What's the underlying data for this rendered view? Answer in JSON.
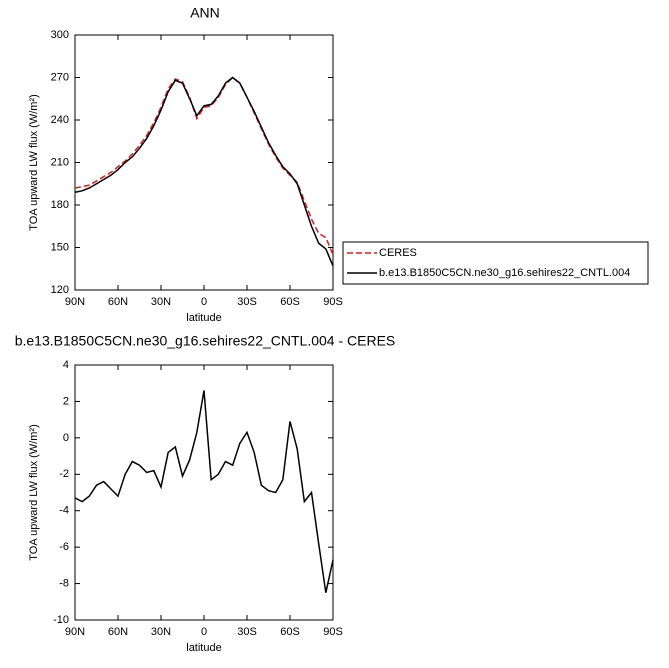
{
  "chart_data": [
    {
      "type": "line",
      "title": "ANN",
      "xlabel": "latitude",
      "ylabel": "TOA upward LW flux (W/m²)",
      "x": [
        90,
        85,
        80,
        75,
        70,
        65,
        60,
        55,
        50,
        45,
        40,
        35,
        30,
        25,
        20,
        15,
        10,
        5,
        0,
        -5,
        -10,
        -15,
        -20,
        -25,
        -30,
        -35,
        -40,
        -45,
        -50,
        -55,
        -60,
        -65,
        -70,
        -75,
        -80,
        -85,
        -90
      ],
      "series": [
        {
          "name": "CERES",
          "color": "#e41a1c",
          "line_style": "dashed",
          "values": [
            192,
            193,
            194,
            197,
            200,
            203,
            207,
            211,
            216,
            222,
            229,
            238,
            249,
            262,
            269,
            267,
            256,
            241,
            249,
            250,
            256,
            265,
            270,
            266,
            256,
            245,
            234,
            223,
            214,
            206,
            201,
            196,
            183,
            170,
            160,
            157,
            145
          ]
        },
        {
          "name": "b.e13.B1850C5CN.ne30_g16.sehires22_CNTL.004",
          "color": "#000000",
          "line_style": "solid",
          "values": [
            189,
            190,
            192,
            195,
            198,
            201,
            205,
            210,
            214,
            220,
            227,
            236,
            247,
            260,
            268,
            266,
            255,
            243,
            250,
            251,
            257,
            266,
            270,
            266,
            256,
            246,
            235,
            224,
            215,
            207,
            202,
            195,
            180,
            165,
            153,
            149,
            137
          ]
        }
      ],
      "xlim": [
        90,
        -90
      ],
      "xticks": [
        {
          "value": 90,
          "label": "90N"
        },
        {
          "value": 60,
          "label": "60N"
        },
        {
          "value": 30,
          "label": "30N"
        },
        0,
        {
          "value": -30,
          "label": "30S"
        },
        {
          "value": -60,
          "label": "60S"
        },
        {
          "value": -90,
          "label": "90S"
        }
      ],
      "ylim": [
        120,
        300
      ],
      "yticks": [
        120,
        150,
        180,
        210,
        240,
        270,
        300
      ],
      "legend": "right"
    },
    {
      "type": "line",
      "title": "b.e13.B1850C5CN.ne30_g16.sehires22_CNTL.004 - CERES",
      "xlabel": "latitude",
      "ylabel": "TOA upward LW flux (W/m²)",
      "x": [
        90,
        85,
        80,
        75,
        70,
        65,
        60,
        55,
        50,
        45,
        40,
        35,
        30,
        25,
        20,
        15,
        10,
        5,
        0,
        -5,
        -10,
        -15,
        -20,
        -25,
        -30,
        -35,
        -40,
        -45,
        -50,
        -55,
        -60,
        -65,
        -70,
        -75,
        -80,
        -85,
        -90
      ],
      "color": "#000000",
      "values": [
        -3.3,
        -3.5,
        -3.2,
        -2.6,
        -2.4,
        -2.8,
        -3.2,
        -2.0,
        -1.3,
        -1.5,
        -1.9,
        -1.8,
        -2.7,
        -0.8,
        -0.5,
        -2.1,
        -1.2,
        0.3,
        2.6,
        -2.3,
        -2.0,
        -1.3,
        -1.5,
        -0.3,
        0.3,
        -0.8,
        -2.6,
        -2.9,
        -3.0,
        -2.3,
        0.9,
        -0.6,
        -3.5,
        -3.0,
        -5.8,
        -8.5,
        -6.7
      ],
      "xlim": [
        90,
        -90
      ],
      "xticks": [
        {
          "value": 90,
          "label": "90N"
        },
        {
          "value": 60,
          "label": "60N"
        },
        {
          "value": 30,
          "label": "30N"
        },
        0,
        {
          "value": -30,
          "label": "30S"
        },
        {
          "value": -60,
          "label": "60S"
        },
        {
          "value": -90,
          "label": "90S"
        }
      ],
      "ylim": [
        -10,
        4
      ],
      "yticks": [
        -10,
        -8,
        -6,
        -4,
        -2,
        0,
        2,
        4
      ]
    }
  ]
}
